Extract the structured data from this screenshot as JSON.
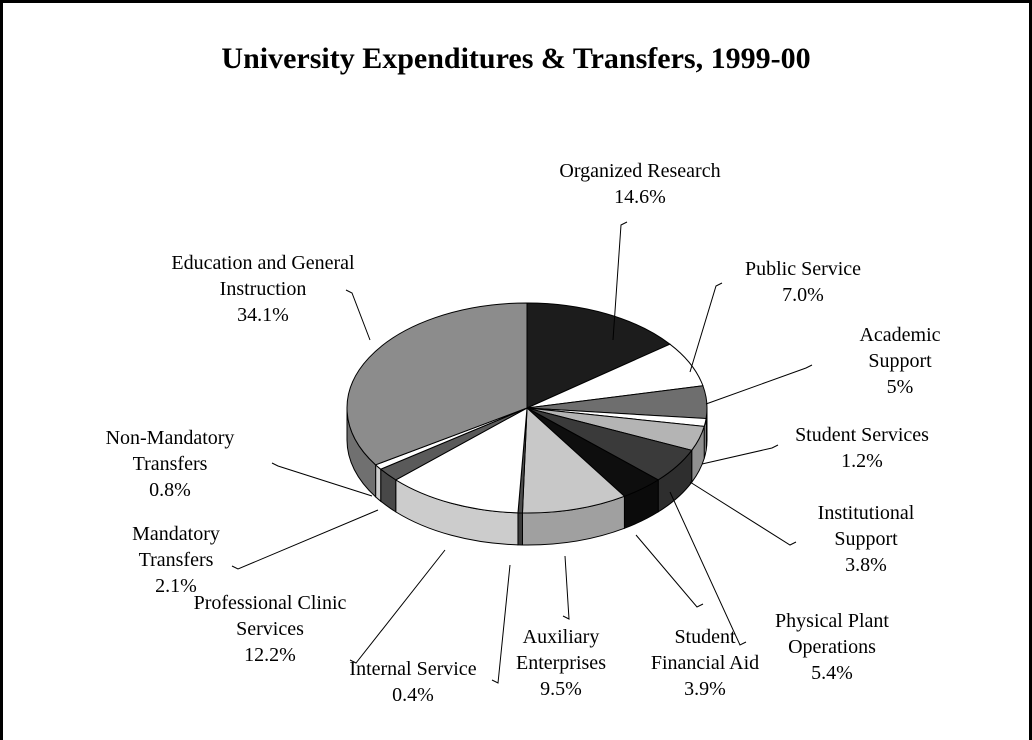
{
  "chart_data": {
    "type": "pie3d",
    "title": "University Expenditures & Transfers, 1999-00",
    "categories": [
      "Organized Research",
      "Public Service",
      "Academic Support",
      "Student Services",
      "Institutional Support",
      "Physical Plant Operations",
      "Student Financial Aid",
      "Auxiliary Enterprises",
      "Internal Service",
      "Professional Clinic Services",
      "Mandatory Transfers",
      "Non-Mandatory Transfers",
      "Education and General Instruction"
    ],
    "values": [
      14.6,
      7.0,
      5,
      1.2,
      3.8,
      5.4,
      3.9,
      9.5,
      0.4,
      12.2,
      2.1,
      0.8,
      34.1
    ],
    "value_labels": [
      "14.6%",
      "7.0%",
      "5%",
      "1.2%",
      "3.8%",
      "5.4%",
      "3.9%",
      "9.5%",
      "0.4%",
      "12.2%",
      "2.1%",
      "0.8%",
      "34.1%"
    ],
    "colors": [
      "#1c1c1c",
      "#ffffff",
      "#6e6e6e",
      "#ffffff",
      "#b4b4b4",
      "#3a3a3a",
      "#0e0e0e",
      "#c8c8c8",
      "#4a4a4a",
      "#ffffff",
      "#5a5a5a",
      "#ffffff",
      "#8c8c8c"
    ]
  }
}
